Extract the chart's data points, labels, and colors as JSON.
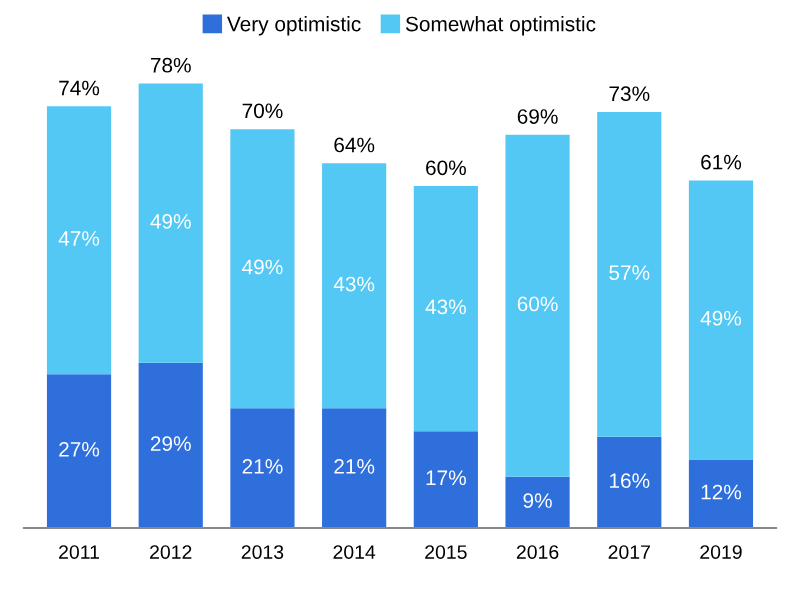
{
  "chart_data": {
    "type": "bar",
    "stacked": true,
    "categories": [
      "2011",
      "2012",
      "2013",
      "2014",
      "2015",
      "2016",
      "2017",
      "2019"
    ],
    "series": [
      {
        "name": "Very optimistic",
        "color": "#2e6fdc",
        "values": [
          27,
          29,
          21,
          21,
          17,
          9,
          16,
          12
        ],
        "value_labels": [
          "27%",
          "29%",
          "21%",
          "21%",
          "17%",
          "9%",
          "16%",
          "12%"
        ]
      },
      {
        "name": "Somewhat optimistic",
        "color": "#54c8f4",
        "values": [
          47,
          49,
          49,
          43,
          43,
          60,
          57,
          49
        ],
        "value_labels": [
          "47%",
          "49%",
          "49%",
          "43%",
          "43%",
          "60%",
          "57%",
          "49%"
        ]
      }
    ],
    "totals": [
      "74%",
      "78%",
      "70%",
      "64%",
      "60%",
      "69%",
      "73%",
      "61%"
    ],
    "legend": "top"
  }
}
